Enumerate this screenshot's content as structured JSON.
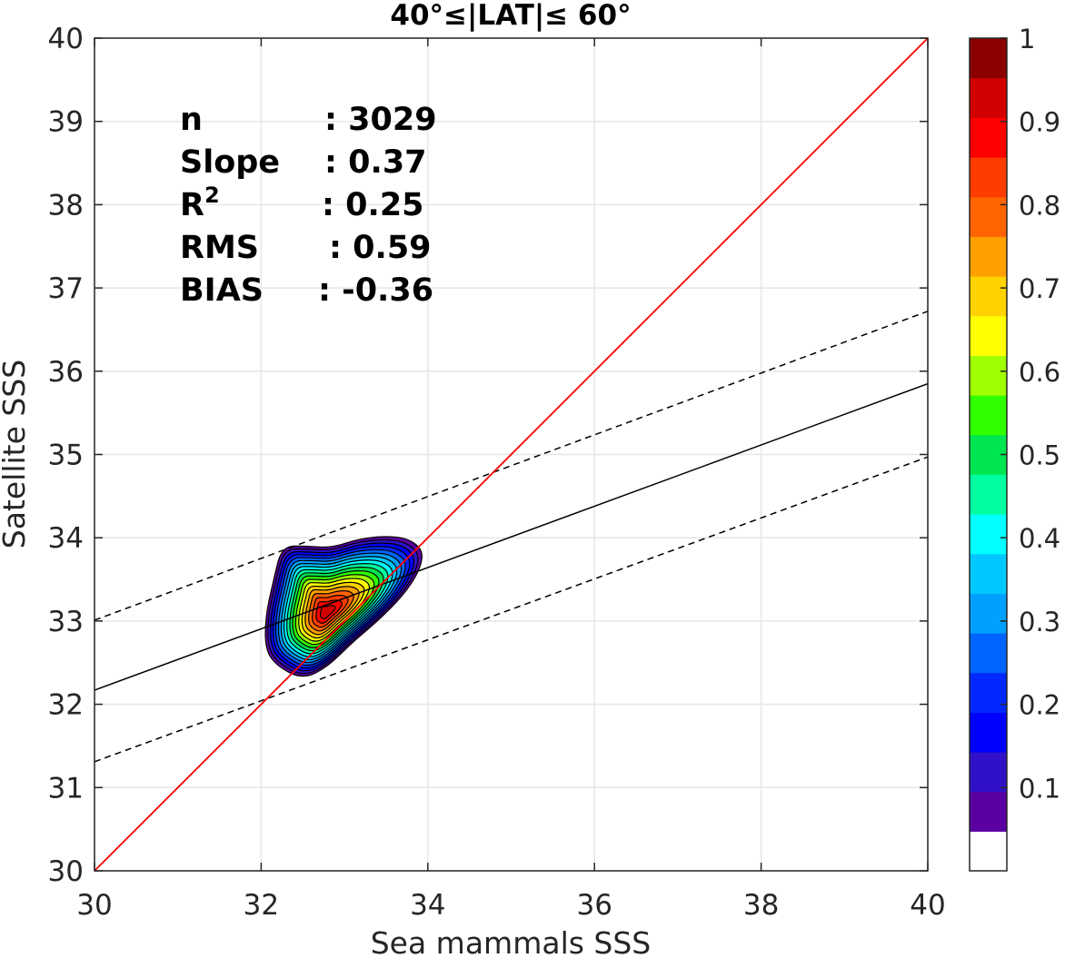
{
  "chart_data": {
    "type": "heatmap",
    "title": "40°≤|LAT|≤ 60°",
    "xlabel": "Sea mammals SSS",
    "ylabel": "Satellite SSS",
    "xlim": [
      30,
      40
    ],
    "ylim": [
      30,
      40
    ],
    "xticks": [
      "30",
      "32",
      "34",
      "36",
      "38",
      "40"
    ],
    "yticks": [
      "30",
      "31",
      "32",
      "33",
      "34",
      "35",
      "36",
      "37",
      "38",
      "39",
      "40"
    ],
    "grid": true,
    "stats": [
      {
        "label": "n",
        "value": ": 3029"
      },
      {
        "label": "Slope",
        "value": ": 0.37"
      },
      {
        "label": "R",
        "sup": "2",
        "value": ": 0.25"
      },
      {
        "label": "RMS",
        "value": ": 0.59"
      },
      {
        "label": "BIAS",
        "value": ": -0.36"
      }
    ],
    "one_to_one_line": {
      "x": [
        30,
        40
      ],
      "y": [
        30,
        40
      ],
      "color": "#ff0000"
    },
    "regression_line": {
      "x": [
        30,
        40
      ],
      "y": [
        32.17,
        35.85
      ],
      "color": "#000000"
    },
    "confidence_bounds": [
      {
        "x": [
          30,
          40
        ],
        "y": [
          33.01,
          36.72
        ]
      },
      {
        "x": [
          30,
          40
        ],
        "y": [
          31.31,
          34.97
        ]
      }
    ],
    "density_center": {
      "x": 32.78,
      "y": 33.1
    },
    "density_levels": [
      0.05,
      0.1,
      0.15,
      0.2,
      0.25,
      0.3,
      0.35,
      0.4,
      0.45,
      0.5,
      0.55,
      0.6,
      0.65,
      0.7,
      0.75,
      0.8,
      0.85,
      0.9,
      0.95
    ],
    "outer_contour": {
      "x": [
        32.25,
        32.55,
        32.85,
        33.15,
        33.45,
        33.75,
        33.95,
        33.9,
        33.7,
        33.4,
        33.1,
        32.8,
        32.5,
        32.2,
        32.05,
        32.05,
        32.15
      ],
      "y": [
        33.9,
        33.9,
        33.88,
        33.98,
        34.02,
        34.0,
        33.85,
        33.6,
        33.3,
        33.0,
        32.75,
        32.45,
        32.3,
        32.45,
        32.65,
        33.05,
        33.5
      ]
    },
    "colorbar": {
      "range": [
        0,
        1
      ],
      "ticks": [
        "0.1",
        "0.2",
        "0.3",
        "0.4",
        "0.5",
        "0.6",
        "0.7",
        "0.8",
        "0.9",
        "1"
      ],
      "colors": [
        "#ffffff",
        "#5a00a0",
        "#3010c8",
        "#0000ff",
        "#0028ff",
        "#0064ff",
        "#00a0ff",
        "#00c8ff",
        "#00ffff",
        "#00ffa0",
        "#00e650",
        "#30ff00",
        "#a0ff00",
        "#ffff00",
        "#ffd200",
        "#ffa000",
        "#ff6400",
        "#ff3c00",
        "#ff0000",
        "#d20000",
        "#8c0000"
      ]
    }
  }
}
